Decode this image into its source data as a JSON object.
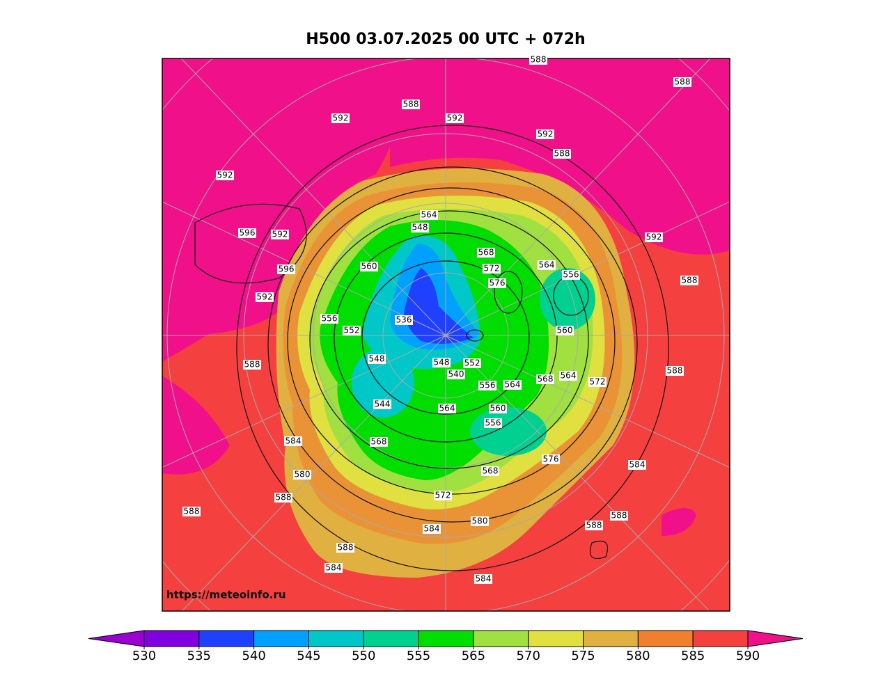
{
  "title": "H500  03.07.2025 00 UTC + 072h",
  "watermark": "https://meteoinfo.ru",
  "contour_labels": [
    "588",
    "588",
    "588",
    "592",
    "592",
    "592",
    "588",
    "592",
    "596",
    "592",
    "592",
    "596",
    "588",
    "592",
    "564",
    "548",
    "568",
    "572",
    "576",
    "564",
    "556",
    "560",
    "556",
    "552",
    "536",
    "560",
    "548",
    "548",
    "552",
    "540",
    "564",
    "568",
    "564",
    "556",
    "572",
    "588",
    "588",
    "544",
    "564",
    "560",
    "556",
    "568",
    "584",
    "576",
    "584",
    "580",
    "568",
    "572",
    "588",
    "588",
    "588",
    "580",
    "588",
    "584",
    "588",
    "584",
    "584"
  ],
  "colorbar": {
    "ticks": [
      530,
      535,
      540,
      545,
      550,
      555,
      565,
      570,
      575,
      580,
      585,
      590
    ],
    "colors": [
      "#8000e0",
      "#2040ff",
      "#00a0ff",
      "#00c8c8",
      "#00d090",
      "#00dd00",
      "#a0e040",
      "#e0e040",
      "#e0b040",
      "#f08030",
      "#f54040"
    ],
    "under_color": "#9a00d0",
    "over_color": "#f0108a"
  }
}
